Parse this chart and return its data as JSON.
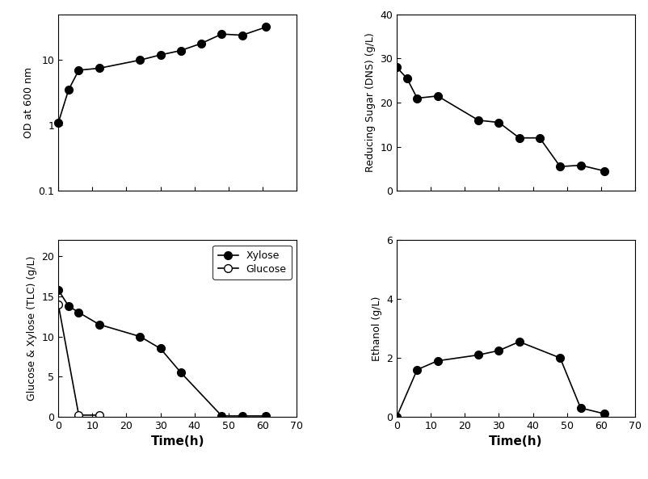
{
  "od_time": [
    0,
    3,
    6,
    12,
    24,
    30,
    36,
    42,
    48,
    54,
    61
  ],
  "od_values": [
    1.1,
    3.5,
    7.0,
    7.5,
    10.0,
    12.0,
    14.0,
    18.0,
    25.0,
    24.0,
    32.0
  ],
  "dns_time": [
    0,
    3,
    6,
    12,
    24,
    30,
    36,
    42,
    48,
    54,
    61
  ],
  "dns_values": [
    28.0,
    25.5,
    21.0,
    21.5,
    16.0,
    15.5,
    12.0,
    12.0,
    5.5,
    5.8,
    4.5
  ],
  "xylose_time": [
    0,
    3,
    6,
    12,
    24,
    30,
    36,
    48,
    54,
    61
  ],
  "xylose_values": [
    15.8,
    13.8,
    13.0,
    11.5,
    10.0,
    8.5,
    5.5,
    0.1,
    0.1,
    0.1
  ],
  "glucose_time": [
    0,
    6,
    12
  ],
  "glucose_values": [
    14.0,
    0.2,
    0.2
  ],
  "ethanol_time": [
    0,
    6,
    12,
    24,
    30,
    36,
    48,
    54,
    61
  ],
  "ethanol_values": [
    0.0,
    1.6,
    1.9,
    2.1,
    2.25,
    2.55,
    2.0,
    0.3,
    0.1
  ],
  "color": "black",
  "marker_filled": "o",
  "marker_open": "o",
  "markersize": 7,
  "ylabel_od": "OD at 600 nm",
  "ylabel_dns": "Reducing Sugar (DNS) (g/L)",
  "ylabel_tlc": "Glucose & Xylose (TLC) (g/L)",
  "ylabel_eth": "Ethanol (g/L)",
  "xlabel": "Time(h)",
  "od_ylim": [
    0.1,
    50
  ],
  "dns_ylim": [
    0,
    40
  ],
  "tlc_ylim": [
    0,
    22
  ],
  "eth_ylim": [
    0,
    6
  ],
  "xlim": [
    0,
    70
  ]
}
